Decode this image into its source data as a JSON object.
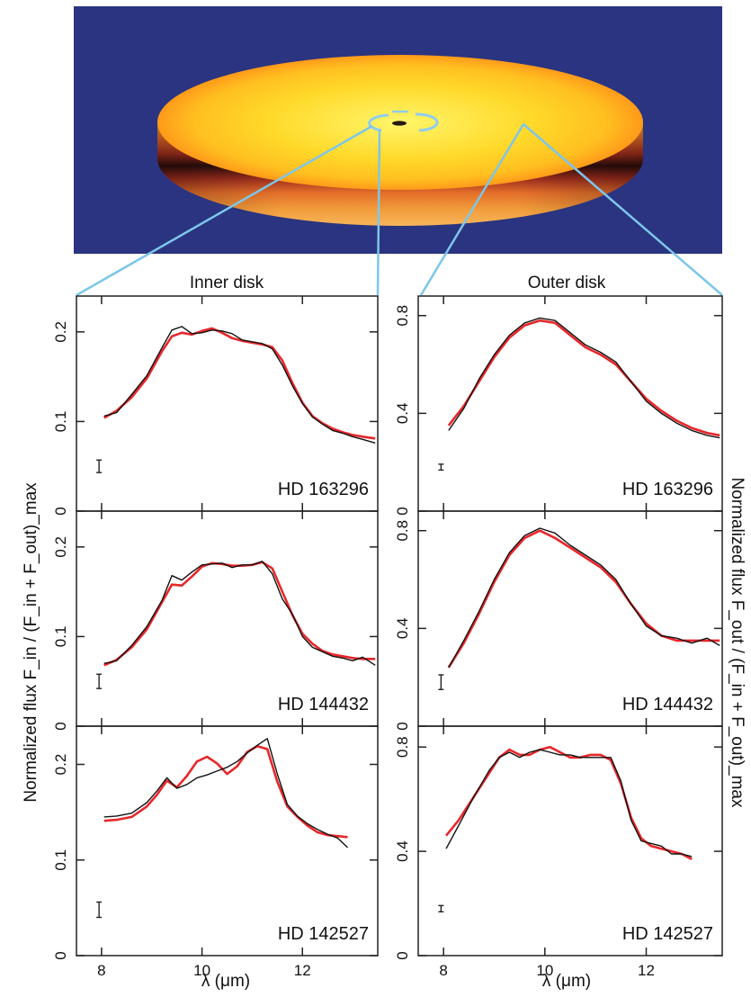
{
  "figure": {
    "inner_title": "Inner disk",
    "outer_title": "Outer disk",
    "xlabel_left": "λ (μm)",
    "xlabel_right": "λ (μm)",
    "ylabel_left": "Normalized flux F_in / (F_in + F_out)_max",
    "ylabel_right": "Normalized flux F_out / (F_in + F_out)_max",
    "colors": {
      "background_panel": "#2a3480",
      "model": "#e8262a",
      "observed": "#111111",
      "leader": "#7cc6ea"
    }
  },
  "chart_data": [
    {
      "type": "line",
      "panel": "inner",
      "star": "HD 163296",
      "xlim": [
        7.5,
        13.5
      ],
      "ylim": [
        0,
        0.24
      ],
      "xticks": [
        8,
        10,
        12
      ],
      "yticks": [
        0,
        0.1,
        0.2
      ],
      "xtick_labels": [
        "8",
        "10",
        "12"
      ],
      "ytick_labels": [
        "0",
        "0.1",
        "0.2"
      ],
      "error_bar": {
        "x": 7.95,
        "y": 0.05,
        "err": 0.007
      },
      "series": [
        {
          "role": "model",
          "x": [
            8.05,
            8.3,
            8.6,
            8.9,
            9.2,
            9.4,
            9.6,
            9.8,
            10.0,
            10.2,
            10.4,
            10.6,
            10.8,
            11.0,
            11.2,
            11.4,
            11.6,
            11.8,
            12.0,
            12.2,
            12.4,
            12.6,
            12.8,
            13.0,
            13.2,
            13.45
          ],
          "y": [
            0.104,
            0.112,
            0.127,
            0.148,
            0.178,
            0.195,
            0.199,
            0.197,
            0.201,
            0.204,
            0.199,
            0.193,
            0.19,
            0.188,
            0.186,
            0.183,
            0.168,
            0.143,
            0.121,
            0.106,
            0.098,
            0.092,
            0.088,
            0.085,
            0.083,
            0.081
          ]
        },
        {
          "role": "observed",
          "x": [
            8.05,
            8.3,
            8.6,
            8.9,
            9.2,
            9.4,
            9.6,
            9.8,
            10.0,
            10.2,
            10.4,
            10.6,
            10.8,
            11.0,
            11.2,
            11.4,
            11.6,
            11.8,
            12.0,
            12.2,
            12.4,
            12.6,
            12.8,
            13.0,
            13.2,
            13.45
          ],
          "y": [
            0.106,
            0.11,
            0.13,
            0.151,
            0.182,
            0.202,
            0.206,
            0.198,
            0.199,
            0.202,
            0.201,
            0.198,
            0.191,
            0.189,
            0.187,
            0.181,
            0.163,
            0.14,
            0.12,
            0.105,
            0.097,
            0.09,
            0.087,
            0.083,
            0.08,
            0.076
          ]
        }
      ]
    },
    {
      "type": "line",
      "panel": "inner",
      "star": "HD 144432",
      "xlim": [
        7.5,
        13.5
      ],
      "ylim": [
        0,
        0.24
      ],
      "xticks": [
        8,
        10,
        12
      ],
      "yticks": [
        0,
        0.1,
        0.2
      ],
      "xtick_labels": [
        "8",
        "10",
        "12"
      ],
      "ytick_labels": [
        "0",
        "0.1",
        "0.2"
      ],
      "error_bar": {
        "x": 7.95,
        "y": 0.05,
        "err": 0.008
      },
      "series": [
        {
          "role": "model",
          "x": [
            8.05,
            8.3,
            8.6,
            8.9,
            9.2,
            9.4,
            9.6,
            9.8,
            10.0,
            10.2,
            10.4,
            10.6,
            10.8,
            11.0,
            11.2,
            11.4,
            11.6,
            11.8,
            12.0,
            12.2,
            12.4,
            12.6,
            12.8,
            13.0,
            13.2,
            13.45
          ],
          "y": [
            0.068,
            0.074,
            0.088,
            0.108,
            0.138,
            0.158,
            0.157,
            0.167,
            0.178,
            0.182,
            0.181,
            0.179,
            0.179,
            0.18,
            0.183,
            0.176,
            0.15,
            0.124,
            0.103,
            0.092,
            0.084,
            0.08,
            0.078,
            0.076,
            0.075,
            0.075
          ]
        },
        {
          "role": "observed",
          "x": [
            8.05,
            8.3,
            8.6,
            8.9,
            9.2,
            9.4,
            9.6,
            9.8,
            10.0,
            10.2,
            10.4,
            10.6,
            10.8,
            11.0,
            11.2,
            11.4,
            11.6,
            11.8,
            12.0,
            12.2,
            12.4,
            12.6,
            12.8,
            13.0,
            13.2,
            13.45
          ],
          "y": [
            0.07,
            0.073,
            0.09,
            0.111,
            0.14,
            0.168,
            0.163,
            0.172,
            0.18,
            0.181,
            0.182,
            0.177,
            0.18,
            0.18,
            0.184,
            0.17,
            0.142,
            0.125,
            0.1,
            0.088,
            0.083,
            0.078,
            0.076,
            0.073,
            0.077,
            0.068
          ]
        }
      ]
    },
    {
      "type": "line",
      "panel": "inner",
      "star": "HD 142527",
      "xlim": [
        7.5,
        13.5
      ],
      "ylim": [
        0,
        0.24
      ],
      "xticks": [
        8,
        10,
        12
      ],
      "yticks": [
        0,
        0.1,
        0.2
      ],
      "xtick_labels": [
        "8",
        "10",
        "12"
      ],
      "ytick_labels": [
        "0",
        "0.1",
        "0.2"
      ],
      "error_bar": {
        "x": 7.95,
        "y": 0.048,
        "err": 0.008
      },
      "series": [
        {
          "role": "model",
          "x": [
            8.05,
            8.3,
            8.6,
            8.9,
            9.1,
            9.3,
            9.5,
            9.7,
            9.9,
            10.1,
            10.3,
            10.5,
            10.7,
            10.9,
            11.1,
            11.3,
            11.5,
            11.7,
            11.9,
            12.1,
            12.3,
            12.5,
            12.7,
            12.9
          ],
          "y": [
            0.141,
            0.142,
            0.145,
            0.156,
            0.168,
            0.183,
            0.176,
            0.188,
            0.203,
            0.208,
            0.201,
            0.19,
            0.198,
            0.213,
            0.219,
            0.216,
            0.182,
            0.156,
            0.145,
            0.136,
            0.129,
            0.126,
            0.125,
            0.124
          ]
        },
        {
          "role": "observed",
          "x": [
            8.05,
            8.3,
            8.6,
            8.9,
            9.1,
            9.3,
            9.5,
            9.7,
            9.9,
            10.1,
            10.3,
            10.5,
            10.7,
            10.9,
            11.1,
            11.3,
            11.5,
            11.7,
            11.9,
            12.1,
            12.3,
            12.5,
            12.7,
            12.9
          ],
          "y": [
            0.145,
            0.146,
            0.149,
            0.16,
            0.172,
            0.186,
            0.175,
            0.179,
            0.186,
            0.189,
            0.193,
            0.197,
            0.203,
            0.212,
            0.22,
            0.227,
            0.19,
            0.158,
            0.146,
            0.138,
            0.132,
            0.127,
            0.123,
            0.113
          ]
        }
      ]
    },
    {
      "type": "line",
      "panel": "outer",
      "star": "HD 163296",
      "xlim": [
        7.5,
        13.5
      ],
      "ylim": [
        0,
        0.88
      ],
      "xticks": [
        8,
        10,
        12
      ],
      "yticks": [
        0,
        0.4,
        0.8
      ],
      "xtick_labels": [
        "8",
        "10",
        "12"
      ],
      "ytick_labels": [
        "0",
        "0.4",
        "0.8"
      ],
      "error_bar": {
        "x": 7.95,
        "y": 0.18,
        "err": 0.012
      },
      "series": [
        {
          "role": "model",
          "x": [
            8.1,
            8.4,
            8.7,
            9.0,
            9.3,
            9.6,
            9.9,
            10.2,
            10.5,
            10.8,
            11.1,
            11.4,
            11.7,
            12.0,
            12.3,
            12.6,
            12.9,
            13.2,
            13.45
          ],
          "y": [
            0.35,
            0.43,
            0.53,
            0.63,
            0.71,
            0.76,
            0.78,
            0.77,
            0.72,
            0.67,
            0.64,
            0.6,
            0.53,
            0.46,
            0.41,
            0.37,
            0.34,
            0.32,
            0.31
          ]
        },
        {
          "role": "observed",
          "x": [
            8.1,
            8.4,
            8.7,
            9.0,
            9.3,
            9.6,
            9.9,
            10.2,
            10.5,
            10.8,
            11.1,
            11.4,
            11.7,
            12.0,
            12.3,
            12.6,
            12.9,
            13.2,
            13.45
          ],
          "y": [
            0.33,
            0.42,
            0.54,
            0.64,
            0.72,
            0.77,
            0.79,
            0.78,
            0.73,
            0.68,
            0.65,
            0.61,
            0.53,
            0.45,
            0.4,
            0.36,
            0.33,
            0.31,
            0.3
          ]
        }
      ]
    },
    {
      "type": "line",
      "panel": "outer",
      "star": "HD 144432",
      "xlim": [
        7.5,
        13.5
      ],
      "ylim": [
        0,
        0.88
      ],
      "xticks": [
        8,
        10,
        12
      ],
      "yticks": [
        0,
        0.4,
        0.8
      ],
      "xtick_labels": [
        "8",
        "10",
        "12"
      ],
      "ytick_labels": [
        "0",
        "0.4",
        "0.8"
      ],
      "error_bar": {
        "x": 7.95,
        "y": 0.18,
        "err": 0.03
      },
      "series": [
        {
          "role": "model",
          "x": [
            8.1,
            8.4,
            8.7,
            9.0,
            9.3,
            9.6,
            9.9,
            10.2,
            10.5,
            10.8,
            11.1,
            11.4,
            11.7,
            12.0,
            12.3,
            12.6,
            12.9,
            13.2,
            13.45
          ],
          "y": [
            0.24,
            0.34,
            0.46,
            0.59,
            0.7,
            0.77,
            0.8,
            0.77,
            0.73,
            0.69,
            0.65,
            0.59,
            0.5,
            0.42,
            0.37,
            0.35,
            0.35,
            0.35,
            0.35
          ]
        },
        {
          "role": "observed",
          "x": [
            8.1,
            8.4,
            8.7,
            9.0,
            9.3,
            9.6,
            9.9,
            10.2,
            10.5,
            10.8,
            11.1,
            11.4,
            11.7,
            12.0,
            12.3,
            12.6,
            12.9,
            13.2,
            13.45
          ],
          "y": [
            0.24,
            0.35,
            0.47,
            0.6,
            0.71,
            0.78,
            0.81,
            0.79,
            0.74,
            0.7,
            0.66,
            0.6,
            0.5,
            0.41,
            0.37,
            0.36,
            0.34,
            0.36,
            0.33
          ]
        }
      ]
    },
    {
      "type": "line",
      "panel": "outer",
      "star": "HD 142527",
      "xlim": [
        7.5,
        13.5
      ],
      "ylim": [
        0,
        0.88
      ],
      "xticks": [
        8,
        10,
        12
      ],
      "yticks": [
        0,
        0.4,
        0.8
      ],
      "xtick_labels": [
        "8",
        "10",
        "12"
      ],
      "ytick_labels": [
        "0",
        "0.4",
        "0.8"
      ],
      "error_bar": {
        "x": 7.95,
        "y": 0.18,
        "err": 0.012
      },
      "series": [
        {
          "role": "model",
          "x": [
            8.05,
            8.3,
            8.6,
            8.9,
            9.1,
            9.3,
            9.5,
            9.7,
            9.9,
            10.1,
            10.3,
            10.5,
            10.7,
            10.9,
            11.1,
            11.3,
            11.5,
            11.7,
            11.9,
            12.1,
            12.3,
            12.5,
            12.7,
            12.9
          ],
          "y": [
            0.46,
            0.52,
            0.61,
            0.7,
            0.76,
            0.79,
            0.77,
            0.77,
            0.79,
            0.8,
            0.78,
            0.76,
            0.76,
            0.77,
            0.77,
            0.75,
            0.66,
            0.53,
            0.45,
            0.42,
            0.41,
            0.4,
            0.39,
            0.37
          ]
        },
        {
          "role": "observed",
          "x": [
            8.05,
            8.3,
            8.6,
            8.9,
            9.1,
            9.3,
            9.5,
            9.7,
            9.9,
            10.1,
            10.3,
            10.5,
            10.7,
            10.9,
            11.1,
            11.3,
            11.5,
            11.7,
            11.9,
            12.1,
            12.3,
            12.5,
            12.7,
            12.9
          ],
          "y": [
            0.41,
            0.5,
            0.61,
            0.71,
            0.76,
            0.78,
            0.76,
            0.78,
            0.79,
            0.78,
            0.77,
            0.77,
            0.76,
            0.76,
            0.76,
            0.76,
            0.67,
            0.52,
            0.44,
            0.43,
            0.42,
            0.39,
            0.39,
            0.38
          ]
        }
      ]
    }
  ]
}
